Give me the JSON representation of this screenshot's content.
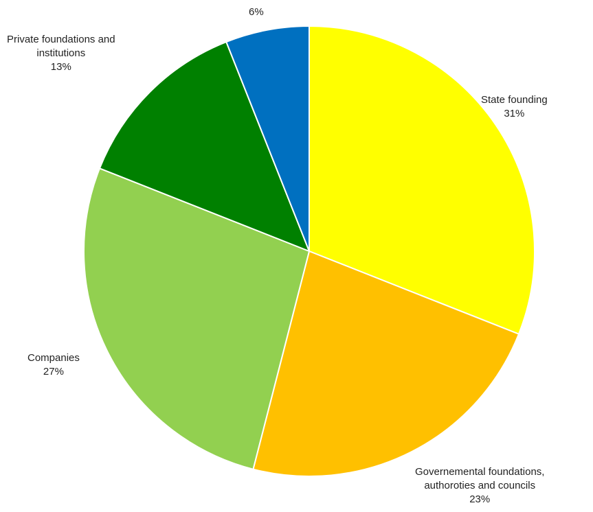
{
  "chart_data": {
    "type": "pie",
    "slices": [
      {
        "label": "State founding",
        "value": 31,
        "value_label": "31%",
        "color": "#FFFF00"
      },
      {
        "label": "Governemental foundations, authoroties and councils",
        "value": 23,
        "value_label": "23%",
        "color": "#FFC000"
      },
      {
        "label": "Companies",
        "value": 27,
        "value_label": "27%",
        "color": "#92D050"
      },
      {
        "label": "Private foundations and institutions",
        "value": 13,
        "value_label": "13%",
        "color": "#008000"
      },
      {
        "label": "",
        "value": 6,
        "value_label": "6%",
        "color": "#0070C0"
      }
    ],
    "label_lines": [
      [
        "State founding"
      ],
      [
        "Governemental foundations,",
        "authoroties and councils"
      ],
      [
        "Companies"
      ],
      [
        "Private foundations and",
        "institutions"
      ],
      []
    ],
    "start": "12 o'clock",
    "direction": "clockwise",
    "legend": "none"
  }
}
